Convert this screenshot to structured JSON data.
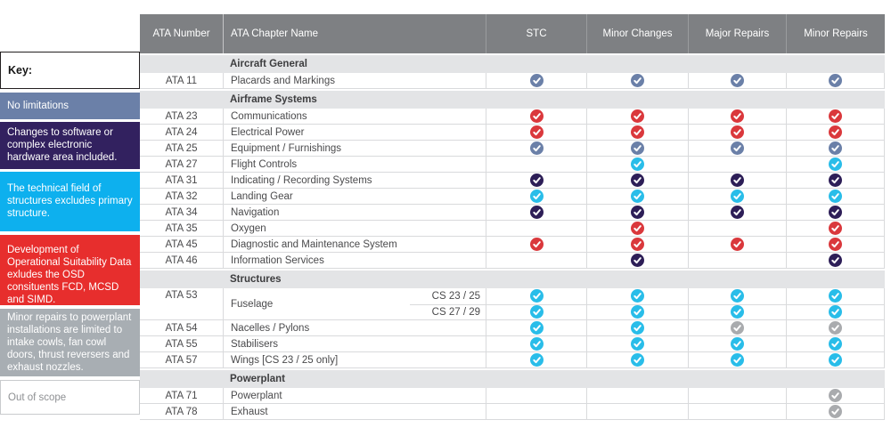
{
  "key": {
    "title": "Key:",
    "items": [
      {
        "label": "No limitations",
        "color": "#6b80a8"
      },
      {
        "label": "Changes to software or complex electronic hardware area included.",
        "color": "#32215f"
      },
      {
        "label": "The technical field of structures excludes primary structure.",
        "color": "#0db0ee"
      },
      {
        "label": "Development of Operational Suitability Data exludes the OSD consituents FCD, MCSD and SIMD.",
        "color": "#e72e2d"
      },
      {
        "label": "Minor repairs to powerplant installations are limited to intake cowls, fan cowl doors, thrust reversers and exhaust nozzles.",
        "color": "#a8aeb3"
      },
      {
        "label": "Out of scope",
        "color": "#ffffff",
        "text_color": "#8e9093",
        "border_color": "#c9cbcd"
      }
    ]
  },
  "check_colors": {
    "bluegray": "#6b80a8",
    "red": "#da383c",
    "cyan": "#29bde9",
    "purple": "#2d1e57",
    "gray": "#a9abae"
  },
  "table": {
    "columns": [
      "ATA Number",
      "ATA Chapter Name",
      "STC",
      "Minor Changes",
      "Major Repairs",
      "Minor Repairs"
    ],
    "sections": [
      {
        "title": "Aircraft General",
        "rows": [
          {
            "ata": "ATA 11",
            "name": "Placards and Markings",
            "checks": [
              "bluegray",
              "bluegray",
              "bluegray",
              "bluegray"
            ]
          }
        ]
      },
      {
        "title": "Airframe Systems",
        "rows": [
          {
            "ata": "ATA 23",
            "name": "Communications",
            "checks": [
              "red",
              "red",
              "red",
              "red"
            ]
          },
          {
            "ata": "ATA 24",
            "name": "Electrical Power",
            "checks": [
              "red",
              "red",
              "red",
              "red"
            ]
          },
          {
            "ata": "ATA 25",
            "name": "Equipment / Furnishings",
            "checks": [
              "bluegray",
              "bluegray",
              "bluegray",
              "bluegray"
            ]
          },
          {
            "ata": "ATA 27",
            "name": "Flight Controls",
            "checks": [
              null,
              "cyan",
              null,
              "cyan"
            ]
          },
          {
            "ata": "ATA 31",
            "name": "Indicating / Recording Systems",
            "checks": [
              "purple",
              "purple",
              "purple",
              "purple"
            ]
          },
          {
            "ata": "ATA 32",
            "name": "Landing Gear",
            "checks": [
              "cyan",
              "cyan",
              "cyan",
              "cyan"
            ]
          },
          {
            "ata": "ATA 34",
            "name": "Navigation",
            "checks": [
              "purple",
              "purple",
              "purple",
              "purple"
            ]
          },
          {
            "ata": "ATA 35",
            "name": "Oxygen",
            "checks": [
              null,
              "red",
              null,
              "red"
            ]
          },
          {
            "ata": "ATA 45",
            "name": "Diagnostic and Maintenance System",
            "checks": [
              "red",
              "red",
              "red",
              "red"
            ]
          },
          {
            "ata": "ATA 46",
            "name": "Information Services",
            "checks": [
              null,
              "purple",
              null,
              "purple"
            ]
          }
        ]
      },
      {
        "title": "Structures",
        "rows": [
          {
            "ata": "ATA 53",
            "name": "Fuselage",
            "subrows": [
              {
                "cs": "CS 23 / 25",
                "checks": [
                  "cyan",
                  "cyan",
                  "cyan",
                  "cyan"
                ]
              },
              {
                "cs": "CS 27 / 29",
                "checks": [
                  "cyan",
                  "cyan",
                  "cyan",
                  "cyan"
                ]
              }
            ]
          },
          {
            "ata": "ATA 54",
            "name": "Nacelles / Pylons",
            "checks": [
              "cyan",
              "cyan",
              "gray",
              "gray"
            ]
          },
          {
            "ata": "ATA 55",
            "name": "Stabilisers",
            "checks": [
              "cyan",
              "cyan",
              "cyan",
              "cyan"
            ]
          },
          {
            "ata": "ATA 57",
            "name": "Wings [CS 23 / 25 only]",
            "checks": [
              "cyan",
              "cyan",
              "cyan",
              "cyan"
            ]
          }
        ]
      },
      {
        "title": "Powerplant",
        "rows": [
          {
            "ata": "ATA 71",
            "name": "Powerplant",
            "checks": [
              null,
              null,
              null,
              "gray"
            ]
          },
          {
            "ata": "ATA 78",
            "name": "Exhaust",
            "checks": [
              null,
              null,
              null,
              "gray"
            ]
          }
        ]
      }
    ]
  }
}
